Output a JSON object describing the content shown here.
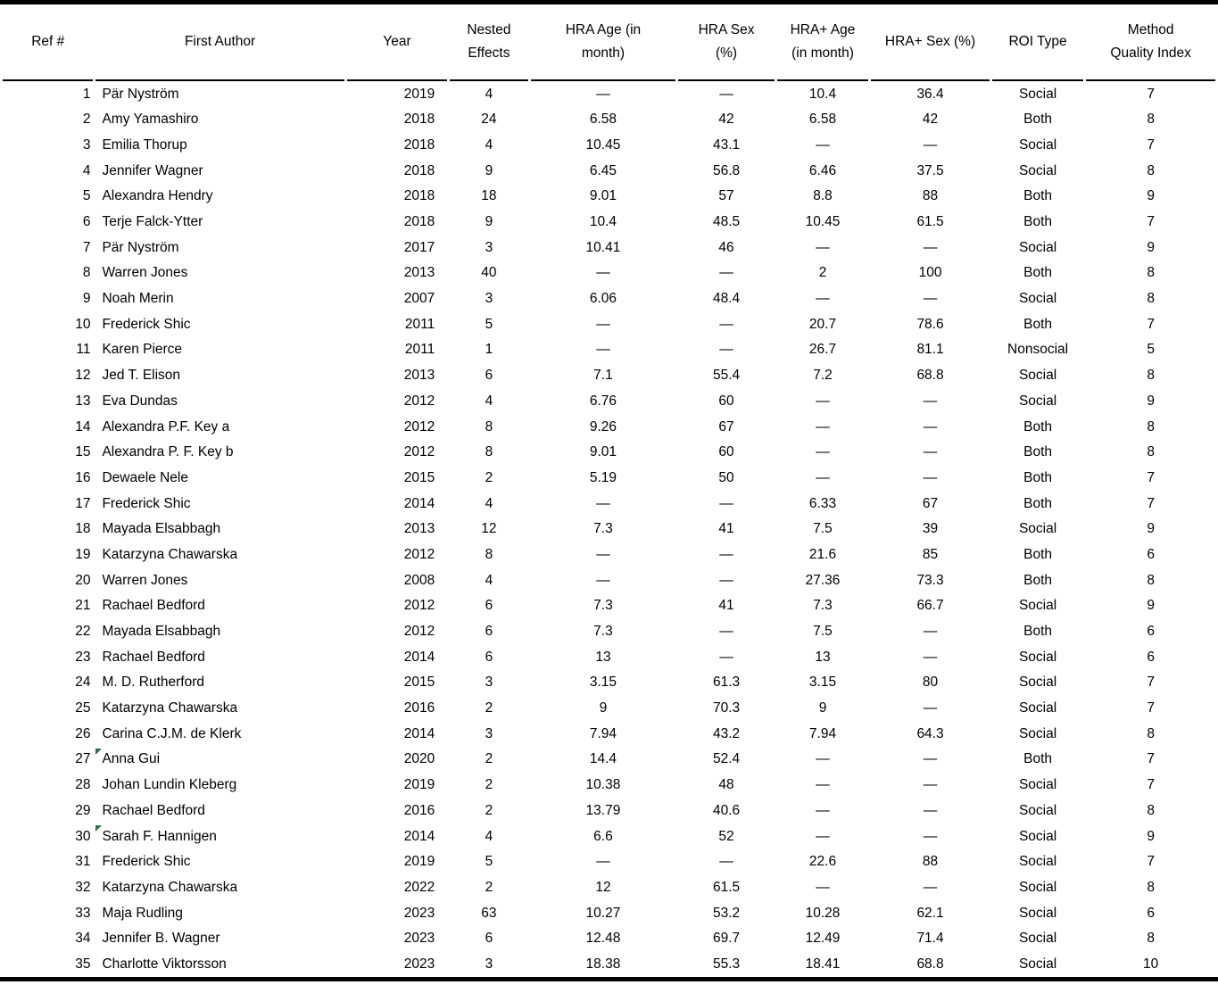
{
  "page": {
    "background": "#ffffff",
    "rule_color": "#000000"
  },
  "table": {
    "flag_color": "#217346",
    "em_dash": "—",
    "columns": [
      {
        "key": "ref",
        "label": "Ref #"
      },
      {
        "key": "author",
        "label": "First Author"
      },
      {
        "key": "year",
        "label": "Year"
      },
      {
        "key": "nested",
        "label": "Nested\nEffects"
      },
      {
        "key": "hra_age",
        "label": "HRA Age (in\nmonth)"
      },
      {
        "key": "hra_sex",
        "label": "HRA Sex\n(%)"
      },
      {
        "key": "hrap_age",
        "label": "HRA+ Age\n(in month)"
      },
      {
        "key": "hrap_sex",
        "label": "HRA+ Sex (%)"
      },
      {
        "key": "roi",
        "label": "ROI Type"
      },
      {
        "key": "mqi",
        "label": "Method\nQuality Index"
      }
    ],
    "rows": [
      {
        "ref": "1",
        "author": "Pär Nyström",
        "year": "2019",
        "nested": "4",
        "hra_age": "—",
        "hra_sex": "—",
        "hrap_age": "10.4",
        "hrap_sex": "36.4",
        "roi": "Social",
        "mqi": "7",
        "flag": false
      },
      {
        "ref": "2",
        "author": "Amy Yamashiro",
        "year": "2018",
        "nested": "24",
        "hra_age": "6.58",
        "hra_sex": "42",
        "hrap_age": "6.58",
        "hrap_sex": "42",
        "roi": "Both",
        "mqi": "8",
        "flag": false
      },
      {
        "ref": "3",
        "author": "Emilia Thorup",
        "year": "2018",
        "nested": "4",
        "hra_age": "10.45",
        "hra_sex": "43.1",
        "hrap_age": "—",
        "hrap_sex": "—",
        "roi": "Social",
        "mqi": "7",
        "flag": false
      },
      {
        "ref": "4",
        "author": "Jennifer Wagner",
        "year": "2018",
        "nested": "9",
        "hra_age": "6.45",
        "hra_sex": "56.8",
        "hrap_age": "6.46",
        "hrap_sex": "37.5",
        "roi": "Social",
        "mqi": "8",
        "flag": false
      },
      {
        "ref": "5",
        "author": "Alexandra Hendry",
        "year": "2018",
        "nested": "18",
        "hra_age": "9.01",
        "hra_sex": "57",
        "hrap_age": "8.8",
        "hrap_sex": "88",
        "roi": "Both",
        "mqi": "9",
        "flag": false
      },
      {
        "ref": "6",
        "author": "Terje Falck-Ytter",
        "year": "2018",
        "nested": "9",
        "hra_age": "10.4",
        "hra_sex": "48.5",
        "hrap_age": "10.45",
        "hrap_sex": "61.5",
        "roi": "Both",
        "mqi": "7",
        "flag": false
      },
      {
        "ref": "7",
        "author": "Pär Nyström",
        "year": "2017",
        "nested": "3",
        "hra_age": "10.41",
        "hra_sex": "46",
        "hrap_age": "—",
        "hrap_sex": "—",
        "roi": "Social",
        "mqi": "9",
        "flag": false
      },
      {
        "ref": "8",
        "author": "Warren Jones",
        "year": "2013",
        "nested": "40",
        "hra_age": "—",
        "hra_sex": "—",
        "hrap_age": "2",
        "hrap_sex": "100",
        "roi": "Both",
        "mqi": "8",
        "flag": false
      },
      {
        "ref": "9",
        "author": "Noah Merin",
        "year": "2007",
        "nested": "3",
        "hra_age": "6.06",
        "hra_sex": "48.4",
        "hrap_age": "—",
        "hrap_sex": "—",
        "roi": "Social",
        "mqi": "8",
        "flag": false
      },
      {
        "ref": "10",
        "author": "Frederick Shic",
        "year": "2011",
        "nested": "5",
        "hra_age": "—",
        "hra_sex": "—",
        "hrap_age": "20.7",
        "hrap_sex": "78.6",
        "roi": "Both",
        "mqi": "7",
        "flag": false
      },
      {
        "ref": "11",
        "author": "Karen Pierce",
        "year": "2011",
        "nested": "1",
        "hra_age": "—",
        "hra_sex": "—",
        "hrap_age": "26.7",
        "hrap_sex": "81.1",
        "roi": "Nonsocial",
        "mqi": "5",
        "flag": false
      },
      {
        "ref": "12",
        "author": "Jed T. Elison",
        "year": "2013",
        "nested": "6",
        "hra_age": "7.1",
        "hra_sex": "55.4",
        "hrap_age": "7.2",
        "hrap_sex": "68.8",
        "roi": "Social",
        "mqi": "8",
        "flag": false
      },
      {
        "ref": "13",
        "author": "Eva Dundas",
        "year": "2012",
        "nested": "4",
        "hra_age": "6.76",
        "hra_sex": "60",
        "hrap_age": "—",
        "hrap_sex": "—",
        "roi": "Social",
        "mqi": "9",
        "flag": false
      },
      {
        "ref": "14",
        "author": "Alexandra P.F. Key a",
        "year": "2012",
        "nested": "8",
        "hra_age": "9.26",
        "hra_sex": "67",
        "hrap_age": "—",
        "hrap_sex": "—",
        "roi": "Both",
        "mqi": "8",
        "flag": false
      },
      {
        "ref": "15",
        "author": "Alexandra P. F. Key b",
        "year": "2012",
        "nested": "8",
        "hra_age": "9.01",
        "hra_sex": "60",
        "hrap_age": "—",
        "hrap_sex": "—",
        "roi": "Both",
        "mqi": "8",
        "flag": false
      },
      {
        "ref": "16",
        "author": "Dewaele Nele",
        "year": "2015",
        "nested": "2",
        "hra_age": "5.19",
        "hra_sex": "50",
        "hrap_age": "—",
        "hrap_sex": "—",
        "roi": "Both",
        "mqi": "7",
        "flag": false
      },
      {
        "ref": "17",
        "author": "Frederick Shic",
        "year": "2014",
        "nested": "4",
        "hra_age": "—",
        "hra_sex": "—",
        "hrap_age": "6.33",
        "hrap_sex": "67",
        "roi": "Both",
        "mqi": "7",
        "flag": false
      },
      {
        "ref": "18",
        "author": "Mayada Elsabbagh",
        "year": "2013",
        "nested": "12",
        "hra_age": "7.3",
        "hra_sex": "41",
        "hrap_age": "7.5",
        "hrap_sex": "39",
        "roi": "Social",
        "mqi": "9",
        "flag": false
      },
      {
        "ref": "19",
        "author": "Katarzyna Chawarska",
        "year": "2012",
        "nested": "8",
        "hra_age": "—",
        "hra_sex": "—",
        "hrap_age": "21.6",
        "hrap_sex": "85",
        "roi": "Both",
        "mqi": "6",
        "flag": false
      },
      {
        "ref": "20",
        "author": "Warren Jones",
        "year": "2008",
        "nested": "4",
        "hra_age": "—",
        "hra_sex": "—",
        "hrap_age": "27.36",
        "hrap_sex": "73.3",
        "roi": "Both",
        "mqi": "8",
        "flag": false
      },
      {
        "ref": "21",
        "author": "Rachael Bedford",
        "year": "2012",
        "nested": "6",
        "hra_age": "7.3",
        "hra_sex": "41",
        "hrap_age": "7.3",
        "hrap_sex": "66.7",
        "roi": "Social",
        "mqi": "9",
        "flag": false
      },
      {
        "ref": "22",
        "author": "Mayada Elsabbagh",
        "year": "2012",
        "nested": "6",
        "hra_age": "7.3",
        "hra_sex": "—",
        "hrap_age": "7.5",
        "hrap_sex": "—",
        "roi": "Both",
        "mqi": "6",
        "flag": false
      },
      {
        "ref": "23",
        "author": "Rachael Bedford",
        "year": "2014",
        "nested": "6",
        "hra_age": "13",
        "hra_sex": "—",
        "hrap_age": "13",
        "hrap_sex": "—",
        "roi": "Social",
        "mqi": "6",
        "flag": false
      },
      {
        "ref": "24",
        "author": "M. D. Rutherford",
        "year": "2015",
        "nested": "3",
        "hra_age": "3.15",
        "hra_sex": "61.3",
        "hrap_age": "3.15",
        "hrap_sex": "80",
        "roi": "Social",
        "mqi": "7",
        "flag": false
      },
      {
        "ref": "25",
        "author": "Katarzyna Chawarska",
        "year": "2016",
        "nested": "2",
        "hra_age": "9",
        "hra_sex": "70.3",
        "hrap_age": "9",
        "hrap_sex": "—",
        "roi": "Social",
        "mqi": "7",
        "flag": false
      },
      {
        "ref": "26",
        "author": "Carina C.J.M. de Klerk",
        "year": "2014",
        "nested": "3",
        "hra_age": "7.94",
        "hra_sex": "43.2",
        "hrap_age": "7.94",
        "hrap_sex": "64.3",
        "roi": "Social",
        "mqi": "8",
        "flag": false
      },
      {
        "ref": "27",
        "author": "Anna Gui",
        "year": "2020",
        "nested": "2",
        "hra_age": "14.4",
        "hra_sex": "52.4",
        "hrap_age": "—",
        "hrap_sex": "—",
        "roi": "Both",
        "mqi": "7",
        "flag": true
      },
      {
        "ref": "28",
        "author": "Johan Lundin Kleberg",
        "year": "2019",
        "nested": "2",
        "hra_age": "10.38",
        "hra_sex": "48",
        "hrap_age": "—",
        "hrap_sex": "—",
        "roi": "Social",
        "mqi": "7",
        "flag": false
      },
      {
        "ref": "29",
        "author": "Rachael Bedford",
        "year": "2016",
        "nested": "2",
        "hra_age": "13.79",
        "hra_sex": "40.6",
        "hrap_age": "—",
        "hrap_sex": "—",
        "roi": "Social",
        "mqi": "8",
        "flag": false
      },
      {
        "ref": "30",
        "author": "Sarah F. Hannigen",
        "year": "2014",
        "nested": "4",
        "hra_age": "6.6",
        "hra_sex": "52",
        "hrap_age": "—",
        "hrap_sex": "—",
        "roi": "Social",
        "mqi": "9",
        "flag": true
      },
      {
        "ref": "31",
        "author": "Frederick Shic",
        "year": "2019",
        "nested": "5",
        "hra_age": "—",
        "hra_sex": "—",
        "hrap_age": "22.6",
        "hrap_sex": "88",
        "roi": "Social",
        "mqi": "7",
        "flag": false
      },
      {
        "ref": "32",
        "author": "Katarzyna Chawarska",
        "year": "2022",
        "nested": "2",
        "hra_age": "12",
        "hra_sex": "61.5",
        "hrap_age": "—",
        "hrap_sex": "—",
        "roi": "Social",
        "mqi": "8",
        "flag": false
      },
      {
        "ref": "33",
        "author": "Maja Rudling",
        "year": "2023",
        "nested": "63",
        "hra_age": "10.27",
        "hra_sex": "53.2",
        "hrap_age": "10.28",
        "hrap_sex": "62.1",
        "roi": "Social",
        "mqi": "6",
        "flag": false
      },
      {
        "ref": "34",
        "author": "Jennifer B. Wagner",
        "year": "2023",
        "nested": "6",
        "hra_age": "12.48",
        "hra_sex": "69.7",
        "hrap_age": "12.49",
        "hrap_sex": "71.4",
        "roi": "Social",
        "mqi": "8",
        "flag": false
      },
      {
        "ref": "35",
        "author": "Charlotte Viktorsson",
        "year": "2023",
        "nested": "3",
        "hra_age": "18.38",
        "hra_sex": "55.3",
        "hrap_age": "18.41",
        "hrap_sex": "68.8",
        "roi": "Social",
        "mqi": "10",
        "flag": false
      }
    ]
  }
}
